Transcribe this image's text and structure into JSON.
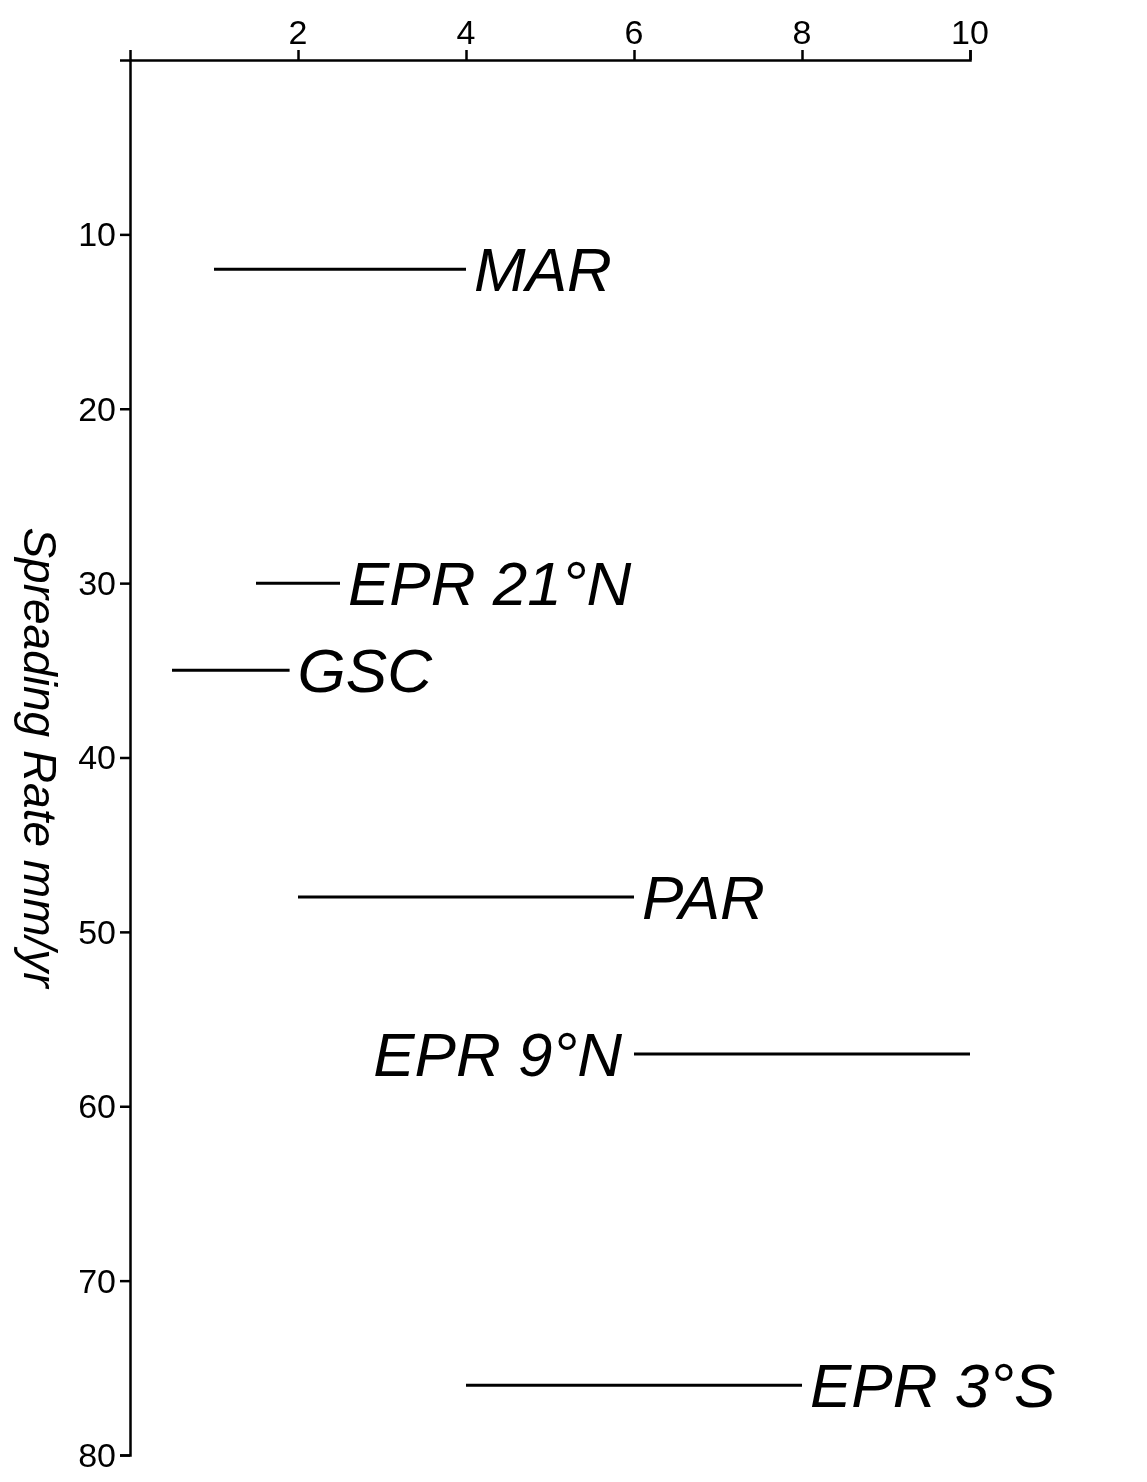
{
  "chart_data": {
    "type": "line",
    "ylabel": "Spreading Rate mm/yr",
    "xlim": [
      0,
      10
    ],
    "xticks": [
      2,
      4,
      6,
      8,
      10
    ],
    "ylim": [
      80,
      0
    ],
    "yticks": [
      10,
      20,
      30,
      40,
      50,
      60,
      70,
      80
    ],
    "grid": false,
    "legend": false,
    "marker": "none",
    "line_style": "solid",
    "series": [
      {
        "color": "#000000",
        "x": [
          1,
          4,
          null,
          1.5,
          2.5,
          null,
          0.5,
          1.9,
          null,
          2,
          6,
          null,
          6,
          10,
          null,
          4,
          8
        ],
        "values": [
          12,
          12,
          null,
          30,
          30,
          null,
          35,
          35,
          null,
          48,
          48,
          null,
          57,
          57,
          null,
          76,
          76
        ]
      }
    ],
    "annotations": [
      {
        "text": "MAR",
        "x": 4,
        "y": 12
      },
      {
        "text": "EPR 21°N",
        "x": 2.5,
        "y": 30
      },
      {
        "text": "GSC",
        "x": 1.9,
        "y": 35
      },
      {
        "text": "PAR",
        "x": 6,
        "y": 48
      },
      {
        "text": "EPR 9°N",
        "x": 6,
        "y": 57
      },
      {
        "text": "EPR 3°S",
        "x": 8,
        "y": 76
      }
    ]
  }
}
